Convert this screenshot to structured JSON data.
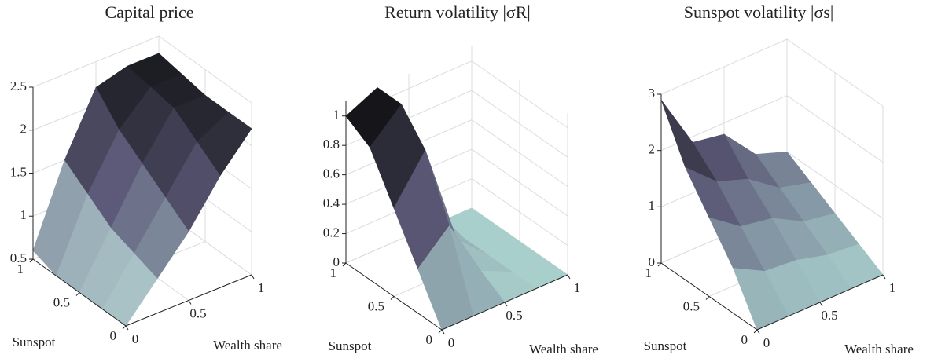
{
  "chart_data": [
    {
      "type": "surface",
      "title": "Capital price",
      "xlabel": "Wealth share",
      "ylabel": "Sunspot",
      "x": [
        0,
        0.25,
        0.5,
        0.75,
        1
      ],
      "y": [
        0,
        0.25,
        0.5,
        0.75,
        1
      ],
      "z": [
        [
          0.5,
          0.9,
          1.3,
          1.8,
          2.2
        ],
        [
          0.5,
          1.0,
          1.5,
          2.0,
          2.2
        ],
        [
          0.5,
          1.1,
          1.7,
          2.2,
          2.2
        ],
        [
          0.5,
          1.3,
          1.9,
          2.25,
          2.25
        ],
        [
          0.6,
          1.5,
          2.2,
          2.3,
          2.3
        ]
      ],
      "xlim": [
        0,
        1
      ],
      "ylim": [
        0,
        1
      ],
      "zlim": [
        0.5,
        2.5
      ],
      "xticks": [
        0,
        0.5,
        1
      ],
      "yticks": [
        0,
        0.5,
        1
      ],
      "zticks": [
        0.5,
        1,
        1.5,
        2,
        2.5
      ],
      "colormap": [
        "#bfe0dc",
        "#5c5a78",
        "#0b0b0b"
      ],
      "grid": true
    },
    {
      "type": "surface",
      "title": "Return volatility |σR|",
      "xlabel": "Wealth share",
      "ylabel": "Sunspot",
      "x": [
        0,
        0.25,
        0.5,
        0.75,
        1
      ],
      "y": [
        0,
        0.25,
        0.5,
        0.75,
        1
      ],
      "z": [
        [
          0,
          0,
          0,
          0,
          0
        ],
        [
          0.3,
          0.5,
          0.1,
          0,
          0
        ],
        [
          0.6,
          0.9,
          0.2,
          0,
          0
        ],
        [
          0.9,
          1.1,
          0.3,
          0,
          0
        ],
        [
          1.0,
          1.1,
          0.4,
          0,
          0
        ]
      ],
      "xlim": [
        0,
        1
      ],
      "ylim": [
        0,
        1
      ],
      "zlim": [
        0,
        1.1
      ],
      "xticks": [
        0,
        0.5,
        1
      ],
      "yticks": [
        0,
        0.5,
        1
      ],
      "zticks": [
        0,
        0.2,
        0.4,
        0.6,
        0.8,
        1
      ],
      "colormap": [
        "#a9cfcc",
        "#5c5a78",
        "#0b0b0b"
      ],
      "grid": true
    },
    {
      "type": "surface",
      "title": "Sunspot volatility |σs|",
      "xlabel": "Wealth share",
      "ylabel": "Sunspot",
      "x": [
        0,
        0.25,
        0.5,
        0.75,
        1
      ],
      "y": [
        0,
        0.25,
        0.5,
        0.75,
        1
      ],
      "z": [
        [
          0,
          0,
          0,
          0,
          0
        ],
        [
          0.8,
          0.5,
          0.45,
          0.3,
          0.25
        ],
        [
          1.4,
          1.0,
          0.9,
          0.6,
          0.5
        ],
        [
          2.0,
          1.5,
          1.3,
          0.9,
          0.75
        ],
        [
          2.9,
          1.9,
          1.8,
          1.2,
          1.0
        ]
      ],
      "xlim": [
        0,
        1
      ],
      "ylim": [
        0,
        1
      ],
      "zlim": [
        0,
        3
      ],
      "xticks": [
        0,
        0.5,
        1
      ],
      "yticks": [
        0,
        0.5,
        1
      ],
      "zticks": [
        0,
        1,
        2,
        3
      ],
      "colormap": [
        "#a9cfcc",
        "#5c5a78",
        "#0b0b0b"
      ],
      "grid": true
    }
  ]
}
